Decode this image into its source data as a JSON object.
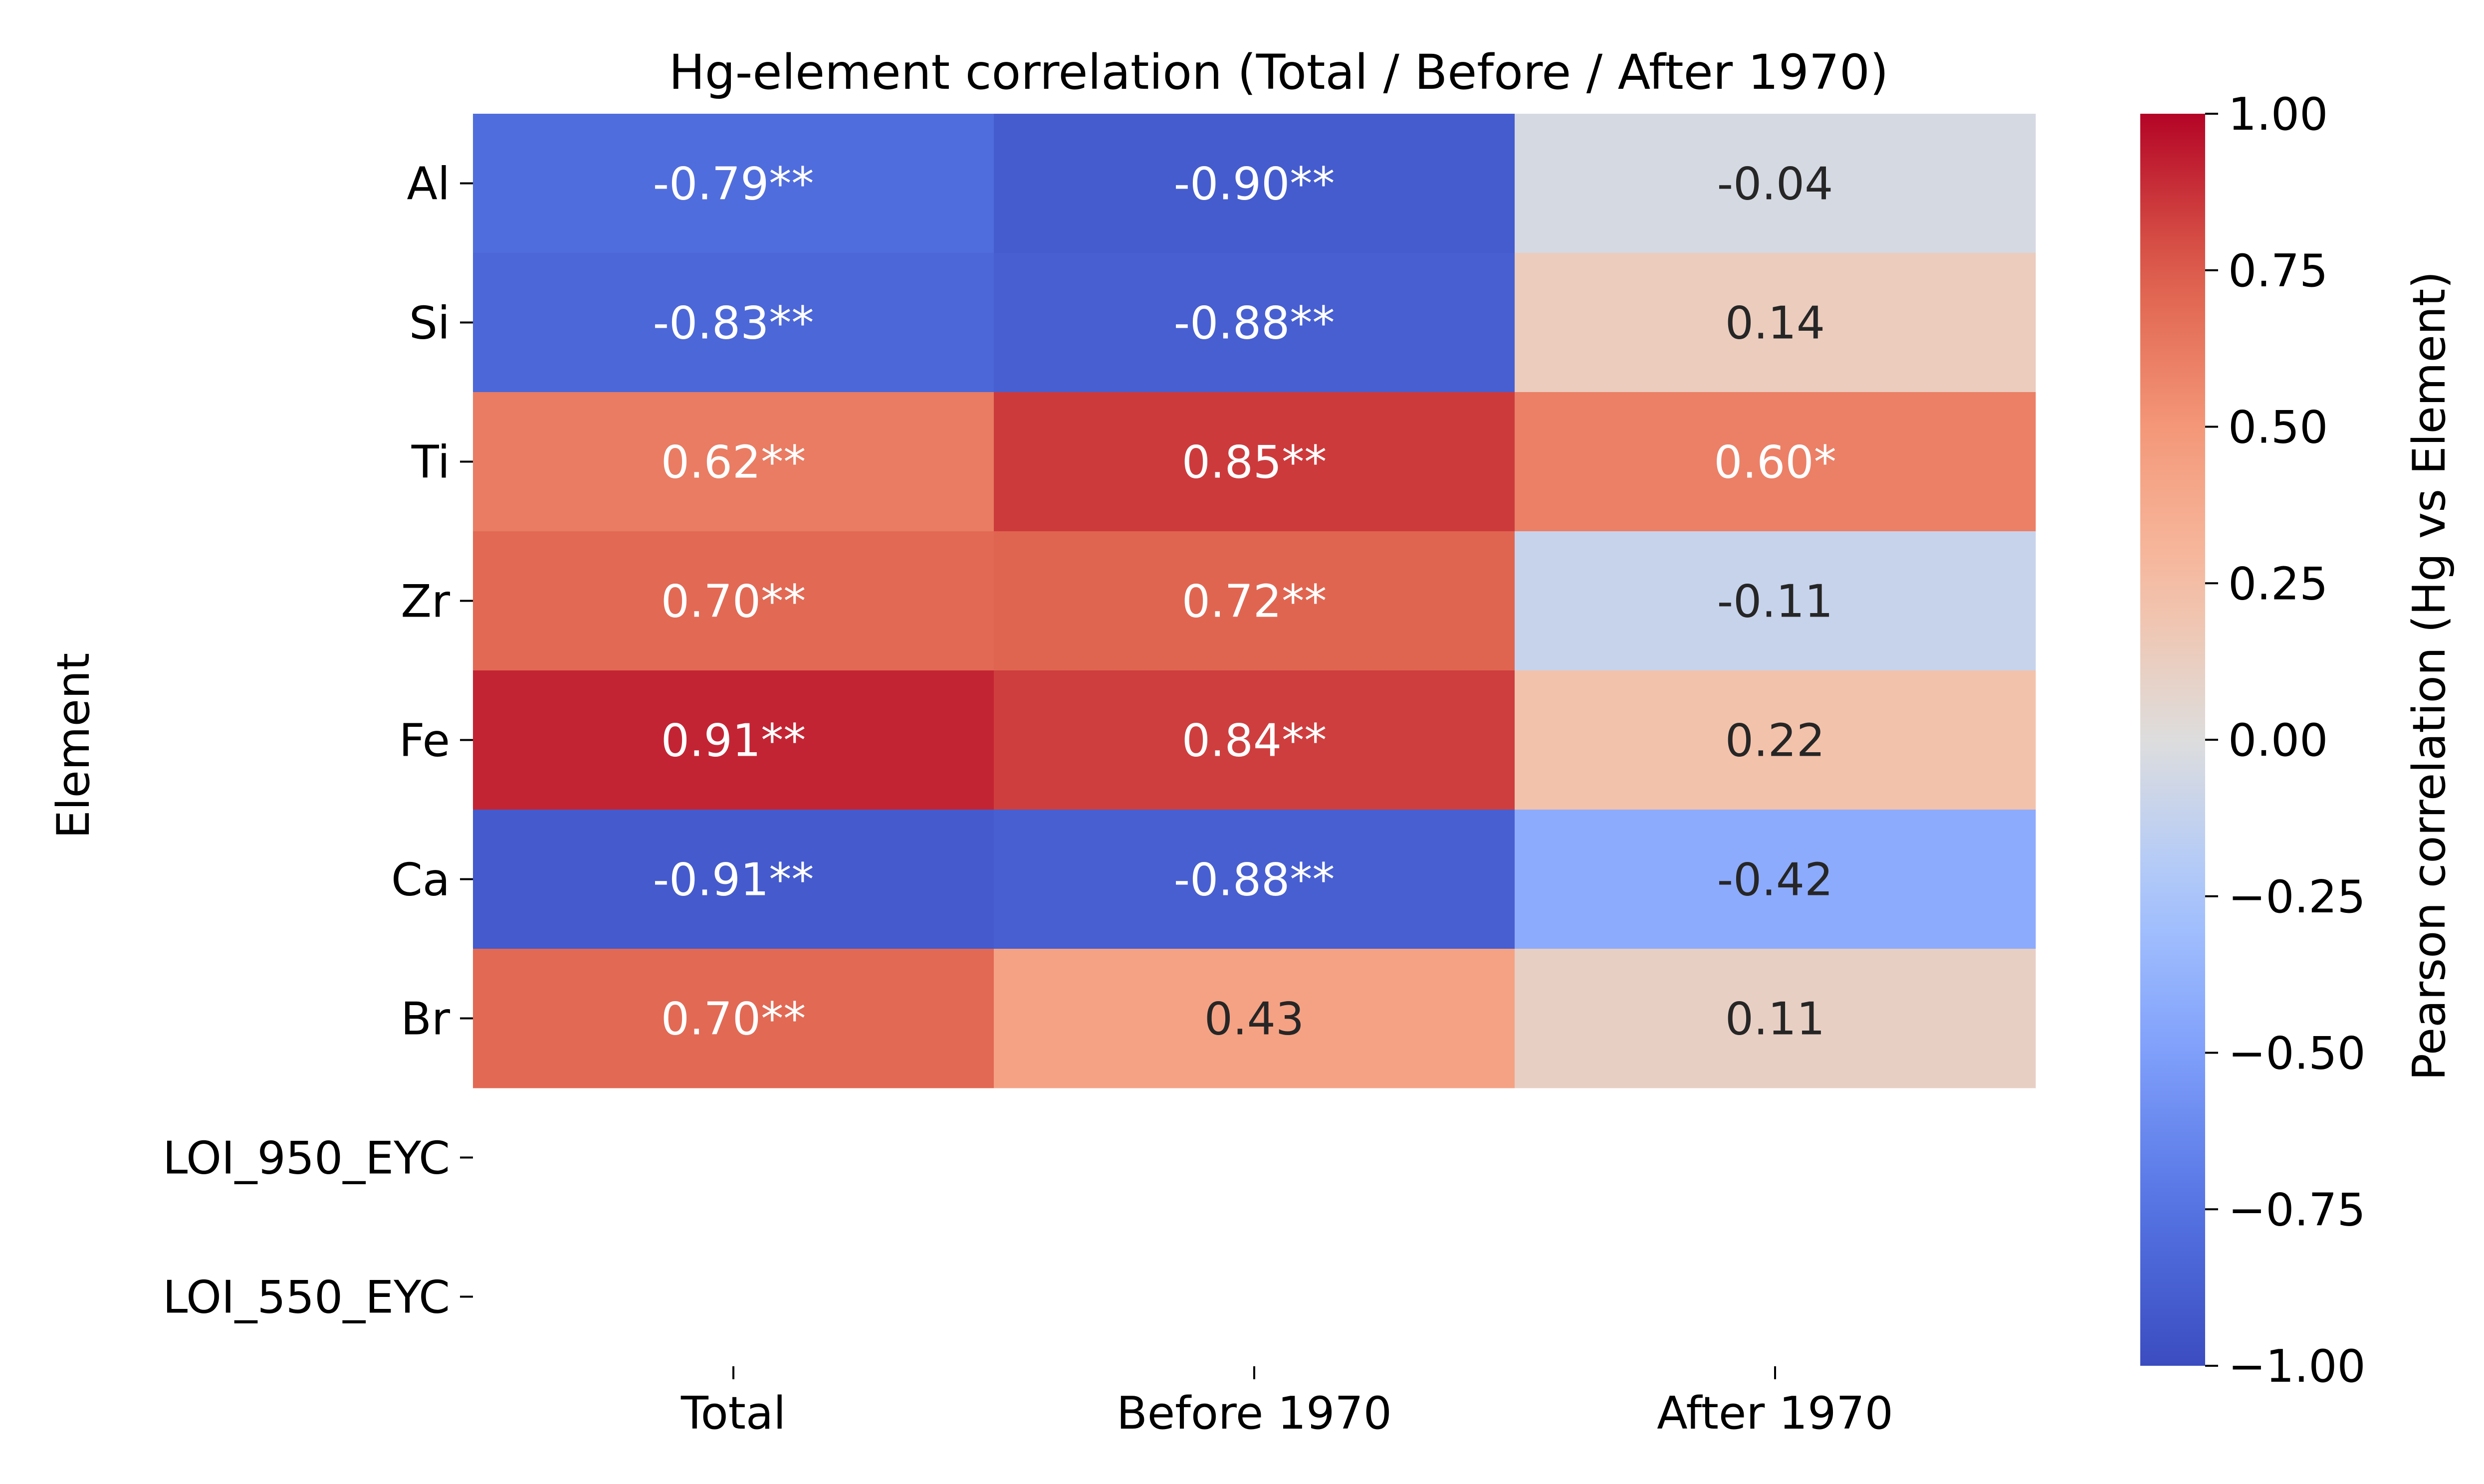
{
  "chart_data": {
    "type": "heatmap",
    "title": "Hg-element correlation (Total / Before / After 1970)",
    "xlabel": "",
    "ylabel": "Element",
    "x_categories": [
      "Total",
      "Before 1970",
      "After 1970"
    ],
    "y_categories": [
      "Al",
      "Si",
      "Ti",
      "Zr",
      "Fe",
      "Ca",
      "Br",
      "LOI_950_EYC",
      "LOI_550_EYC"
    ],
    "values": [
      [
        -0.79,
        -0.9,
        -0.04
      ],
      [
        -0.83,
        -0.88,
        0.14
      ],
      [
        0.62,
        0.85,
        0.6
      ],
      [
        0.7,
        0.72,
        -0.11
      ],
      [
        0.91,
        0.84,
        0.22
      ],
      [
        -0.91,
        -0.88,
        -0.42
      ],
      [
        0.7,
        0.43,
        0.11
      ],
      [
        null,
        null,
        null
      ],
      [
        null,
        null,
        null
      ]
    ],
    "annotations": [
      [
        "-0.79**",
        "-0.90**",
        "-0.04"
      ],
      [
        "-0.83**",
        "-0.88**",
        "0.14"
      ],
      [
        "0.62**",
        "0.85**",
        "0.60*"
      ],
      [
        "0.70**",
        "0.72**",
        "-0.11"
      ],
      [
        "0.91**",
        "0.84**",
        "0.22"
      ],
      [
        "-0.91**",
        "-0.88**",
        "-0.42"
      ],
      [
        "0.70**",
        "0.43",
        "0.11"
      ],
      [
        "",
        "",
        ""
      ],
      [
        "",
        "",
        ""
      ]
    ],
    "colormap": "coolwarm",
    "vmin": -1.0,
    "vmax": 1.0,
    "colorbar": {
      "label": "Pearson correlation (Hg vs Element)",
      "ticks": [
        1.0,
        0.75,
        0.5,
        0.25,
        0.0,
        -0.25,
        -0.5,
        -0.75,
        -1.0
      ],
      "tick_labels": [
        "1.00",
        "0.75",
        "0.50",
        "0.25",
        "0.00",
        "−0.25",
        "−0.50",
        "−0.75",
        "−1.00"
      ]
    }
  }
}
